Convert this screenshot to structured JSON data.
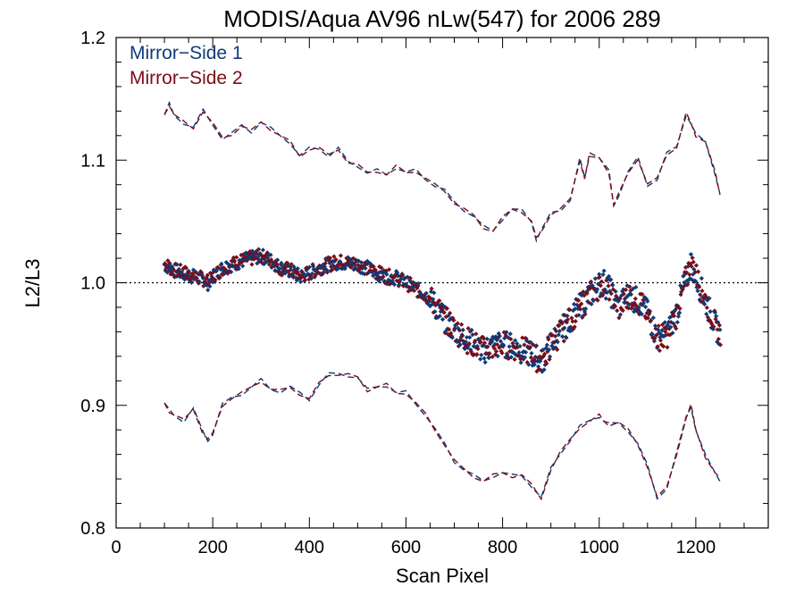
{
  "chart_data": {
    "type": "scatter",
    "title": "MODIS/Aqua AV96 nLw(547) for 2006 289",
    "xlabel": "Scan Pixel",
    "ylabel": "L2/L3",
    "xlim": [
      0,
      1350
    ],
    "ylim": [
      0.8,
      1.2
    ],
    "x_ticks": [
      0,
      200,
      400,
      600,
      800,
      1000,
      1200
    ],
    "y_ticks": [
      0.8,
      0.9,
      1.0,
      1.1,
      1.2
    ],
    "x_tick_labels": [
      "0",
      "200",
      "400",
      "600",
      "800",
      "1000",
      "1200"
    ],
    "y_tick_labels": [
      "0.8",
      "0.9",
      "1.0",
      "1.1",
      "1.2"
    ],
    "reference_line": 1.0,
    "legend_position": "top-left",
    "legend": [
      "Mirror−Side 1",
      "Mirror−Side 2"
    ],
    "colors": {
      "ms1": "#0d3b7a",
      "ms2": "#7a0d18",
      "axis": "#000000"
    },
    "mean_profile": {
      "x": [
        100,
        120,
        140,
        160,
        180,
        190,
        200,
        220,
        240,
        260,
        280,
        300,
        320,
        340,
        360,
        380,
        400,
        420,
        440,
        460,
        480,
        500,
        520,
        540,
        560,
        580,
        600,
        620,
        640,
        660,
        680,
        700,
        720,
        740,
        760,
        780,
        800,
        820,
        840,
        860,
        880,
        900,
        920,
        940,
        960,
        980,
        1000,
        1010,
        1020,
        1040,
        1060,
        1080,
        1100,
        1120,
        1140,
        1160,
        1180,
        1190,
        1200,
        1220,
        1240,
        1250
      ],
      "y": [
        1.015,
        1.01,
        1.008,
        1.005,
        1.003,
        1.0,
        1.005,
        1.012,
        1.015,
        1.018,
        1.02,
        1.022,
        1.018,
        1.012,
        1.01,
        1.005,
        1.008,
        1.012,
        1.015,
        1.017,
        1.016,
        1.015,
        1.012,
        1.008,
        1.005,
        1.004,
        1.0,
        0.995,
        0.99,
        0.982,
        0.97,
        0.962,
        0.955,
        0.95,
        0.945,
        0.948,
        0.95,
        0.948,
        0.945,
        0.942,
        0.935,
        0.95,
        0.96,
        0.97,
        0.98,
        0.99,
        0.998,
        1.0,
        0.995,
        0.98,
        0.99,
        0.985,
        0.975,
        0.955,
        0.958,
        0.975,
        1.005,
        1.015,
        1.005,
        0.985,
        0.965,
        0.958
      ]
    },
    "upper_bound": {
      "x": [
        100,
        110,
        120,
        140,
        160,
        180,
        200,
        220,
        240,
        260,
        280,
        300,
        320,
        340,
        360,
        380,
        400,
        420,
        440,
        460,
        480,
        500,
        520,
        540,
        560,
        580,
        600,
        620,
        640,
        660,
        680,
        700,
        720,
        740,
        760,
        780,
        800,
        820,
        840,
        860,
        870,
        880,
        900,
        920,
        940,
        960,
        970,
        980,
        1000,
        1020,
        1030,
        1040,
        1060,
        1080,
        1100,
        1120,
        1140,
        1160,
        1180,
        1190,
        1200,
        1220,
        1240,
        1250
      ],
      "y": [
        1.137,
        1.145,
        1.137,
        1.131,
        1.126,
        1.14,
        1.13,
        1.118,
        1.121,
        1.128,
        1.124,
        1.131,
        1.125,
        1.12,
        1.115,
        1.103,
        1.109,
        1.11,
        1.104,
        1.109,
        1.098,
        1.096,
        1.09,
        1.091,
        1.088,
        1.095,
        1.09,
        1.091,
        1.085,
        1.08,
        1.075,
        1.065,
        1.06,
        1.055,
        1.045,
        1.042,
        1.053,
        1.06,
        1.058,
        1.05,
        1.036,
        1.042,
        1.056,
        1.06,
        1.068,
        1.1,
        1.085,
        1.105,
        1.102,
        1.09,
        1.063,
        1.072,
        1.09,
        1.101,
        1.08,
        1.085,
        1.105,
        1.11,
        1.138,
        1.13,
        1.12,
        1.115,
        1.09,
        1.072
      ]
    },
    "lower_bound": {
      "x": [
        100,
        110,
        120,
        140,
        160,
        180,
        190,
        200,
        220,
        240,
        260,
        280,
        300,
        320,
        340,
        360,
        380,
        400,
        420,
        440,
        460,
        480,
        500,
        520,
        540,
        560,
        580,
        600,
        620,
        640,
        660,
        680,
        700,
        720,
        740,
        760,
        780,
        800,
        820,
        840,
        860,
        880,
        900,
        920,
        940,
        960,
        980,
        1000,
        1010,
        1020,
        1040,
        1060,
        1080,
        1100,
        1120,
        1140,
        1160,
        1180,
        1190,
        1200,
        1220,
        1240,
        1250
      ],
      "y": [
        0.902,
        0.895,
        0.892,
        0.888,
        0.897,
        0.877,
        0.872,
        0.877,
        0.9,
        0.906,
        0.91,
        0.915,
        0.92,
        0.913,
        0.912,
        0.915,
        0.909,
        0.905,
        0.918,
        0.925,
        0.925,
        0.925,
        0.923,
        0.912,
        0.915,
        0.917,
        0.91,
        0.91,
        0.902,
        0.893,
        0.88,
        0.868,
        0.855,
        0.848,
        0.842,
        0.838,
        0.843,
        0.845,
        0.842,
        0.843,
        0.835,
        0.824,
        0.848,
        0.862,
        0.872,
        0.882,
        0.887,
        0.892,
        0.887,
        0.884,
        0.886,
        0.88,
        0.868,
        0.85,
        0.825,
        0.833,
        0.86,
        0.89,
        0.9,
        0.88,
        0.858,
        0.845,
        0.84
      ]
    }
  }
}
